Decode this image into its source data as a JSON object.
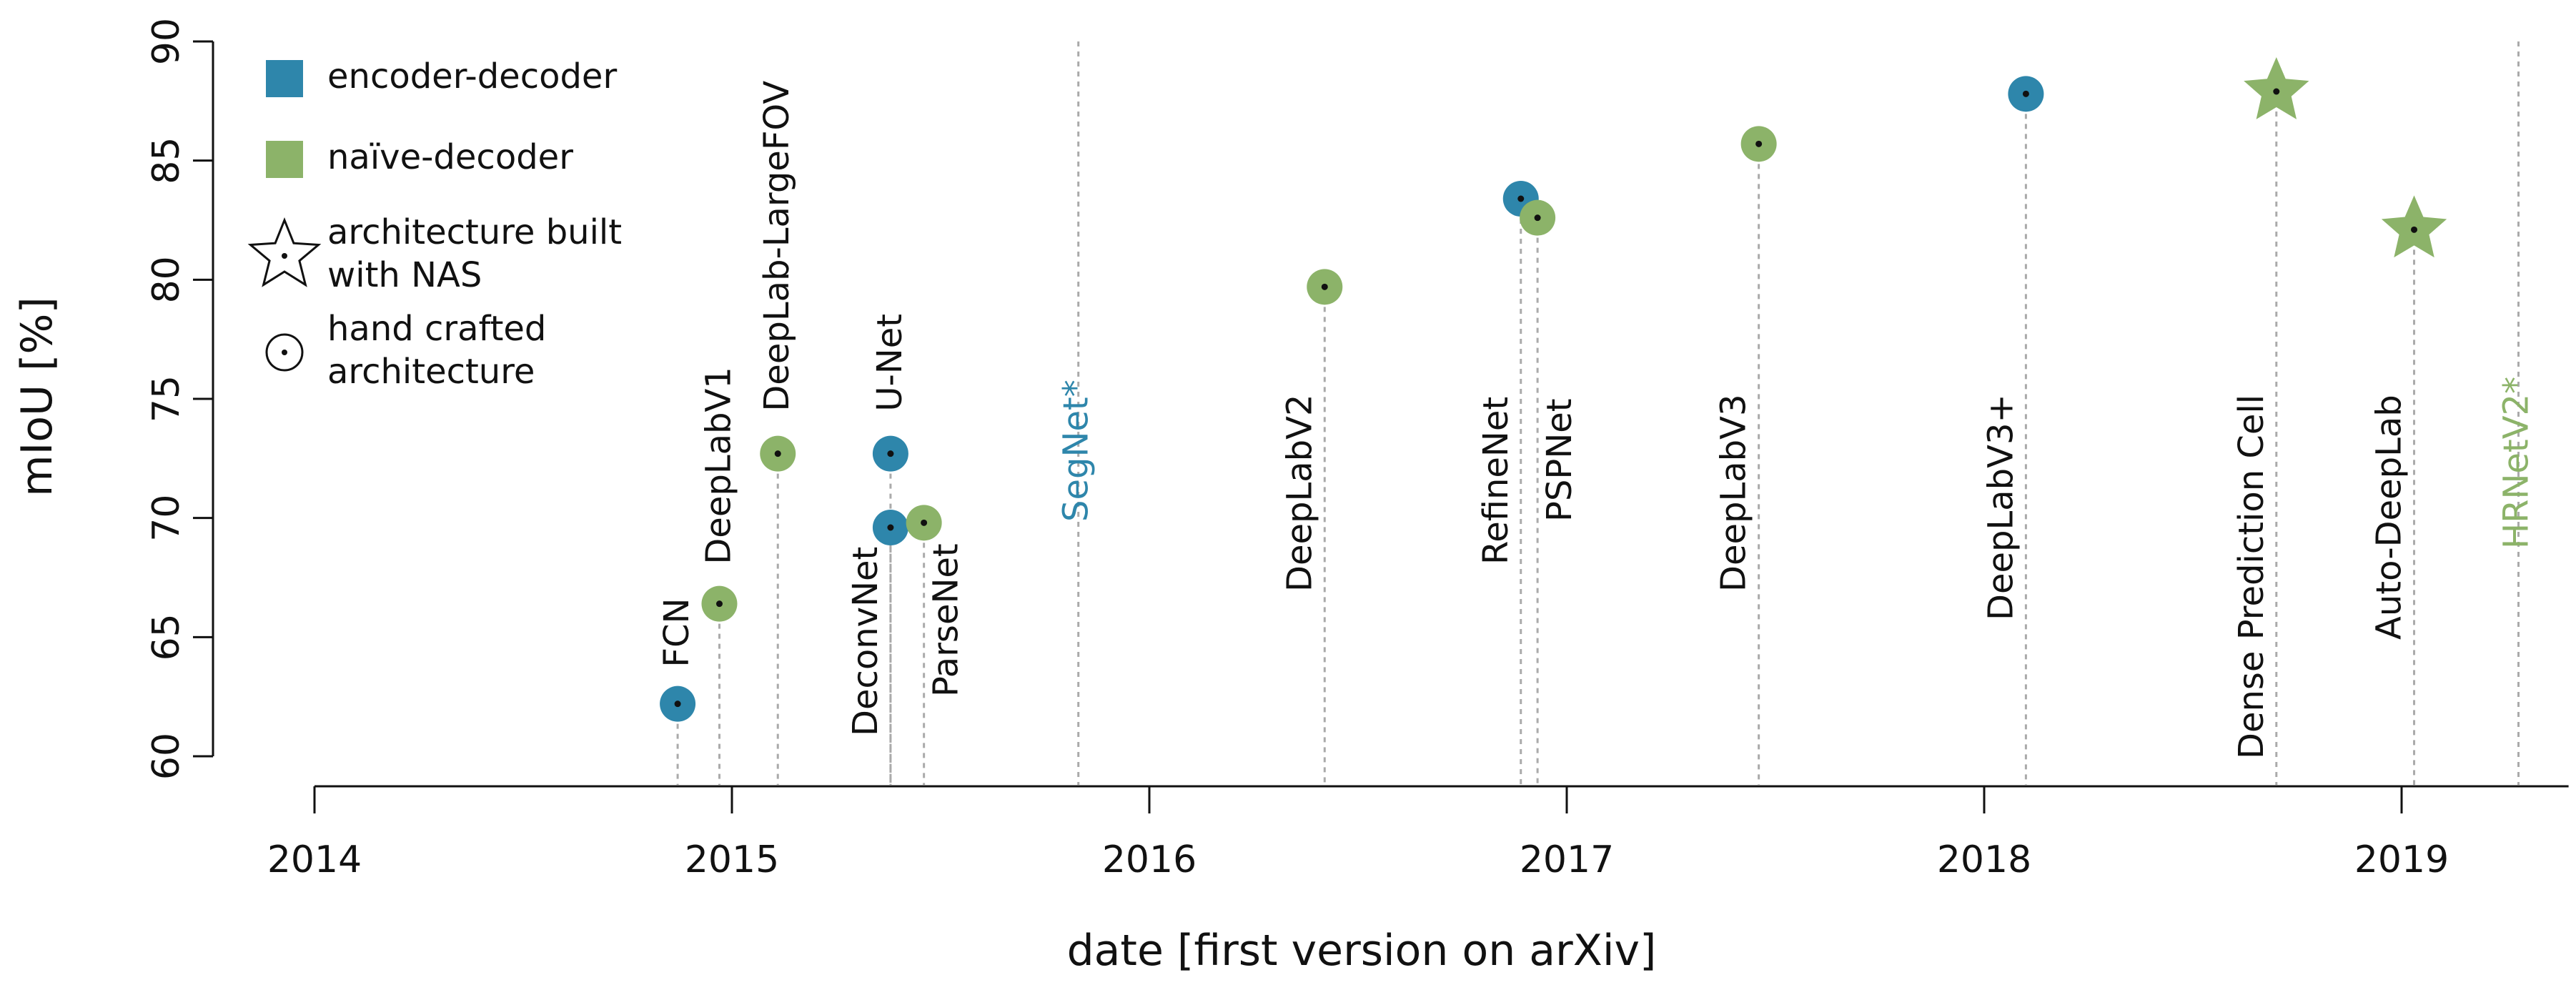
{
  "chart_data": {
    "type": "scatter",
    "title": "",
    "xlabel": "date [first version on arXiv]",
    "ylabel": "mIoU [%]",
    "xlim": [
      2014.0,
      2019.4
    ],
    "ylim": [
      60,
      90
    ],
    "xticks": [
      2014,
      2015,
      2016,
      2017,
      2018,
      2019
    ],
    "yticks": [
      60,
      65,
      70,
      75,
      80,
      85,
      90
    ],
    "grid": false,
    "legend_position": "top-left",
    "colors": {
      "encoder-decoder": "#2e86ab",
      "naïve-decoder": "#8cb369"
    },
    "legend": [
      {
        "label": "encoder-decoder",
        "symbol": "square",
        "category": "encoder-decoder"
      },
      {
        "label": "naïve-decoder",
        "symbol": "square",
        "category": "naïve-decoder"
      },
      {
        "label": "architecture built with NAS",
        "lines": [
          "architecture built",
          "with NAS"
        ],
        "symbol": "star-outline"
      },
      {
        "label": "hand crafted architecture",
        "lines": [
          "hand crafted",
          "architecture"
        ],
        "symbol": "circle-outline"
      }
    ],
    "points": [
      {
        "name": "FCN",
        "x": 2014.87,
        "y": 62.2,
        "category": "encoder-decoder",
        "marker": "circle"
      },
      {
        "name": "DeepLabV1",
        "x": 2014.97,
        "y": 66.4,
        "category": "naïve-decoder",
        "marker": "circle"
      },
      {
        "name": "DeepLab-LargeFOV",
        "x": 2015.11,
        "y": 72.7,
        "category": "naïve-decoder",
        "marker": "circle"
      },
      {
        "name": "DeconvNet",
        "x": 2015.38,
        "y": 69.6,
        "category": "encoder-decoder",
        "marker": "circle"
      },
      {
        "name": "U-Net",
        "x": 2015.38,
        "y": 72.7,
        "category": "encoder-decoder",
        "marker": "circle"
      },
      {
        "name": "ParseNet",
        "x": 2015.46,
        "y": 69.8,
        "category": "naïve-decoder",
        "marker": "circle"
      },
      {
        "name": "SegNet*",
        "x": 2015.83,
        "y": null,
        "category": "encoder-decoder",
        "marker": "none"
      },
      {
        "name": "DeepLabV2",
        "x": 2016.42,
        "y": 79.7,
        "category": "naïve-decoder",
        "marker": "circle"
      },
      {
        "name": "RefineNet",
        "x": 2016.89,
        "y": 83.4,
        "category": "encoder-decoder",
        "marker": "circle"
      },
      {
        "name": "PSPNet",
        "x": 2016.93,
        "y": 82.6,
        "category": "naïve-decoder",
        "marker": "circle"
      },
      {
        "name": "DeepLabV3",
        "x": 2017.46,
        "y": 85.7,
        "category": "naïve-decoder",
        "marker": "circle"
      },
      {
        "name": "DeepLabV3+",
        "x": 2018.1,
        "y": 87.8,
        "category": "encoder-decoder",
        "marker": "circle"
      },
      {
        "name": "Dense Prediction Cell",
        "x": 2018.7,
        "y": 87.9,
        "category": "naïve-decoder",
        "marker": "star"
      },
      {
        "name": "Auto-DeepLab",
        "x": 2019.03,
        "y": 82.1,
        "category": "naïve-decoder",
        "marker": "star"
      },
      {
        "name": "HRNetV2*",
        "x": 2019.28,
        "y": null,
        "category": "naïve-decoder",
        "marker": "none"
      }
    ]
  }
}
